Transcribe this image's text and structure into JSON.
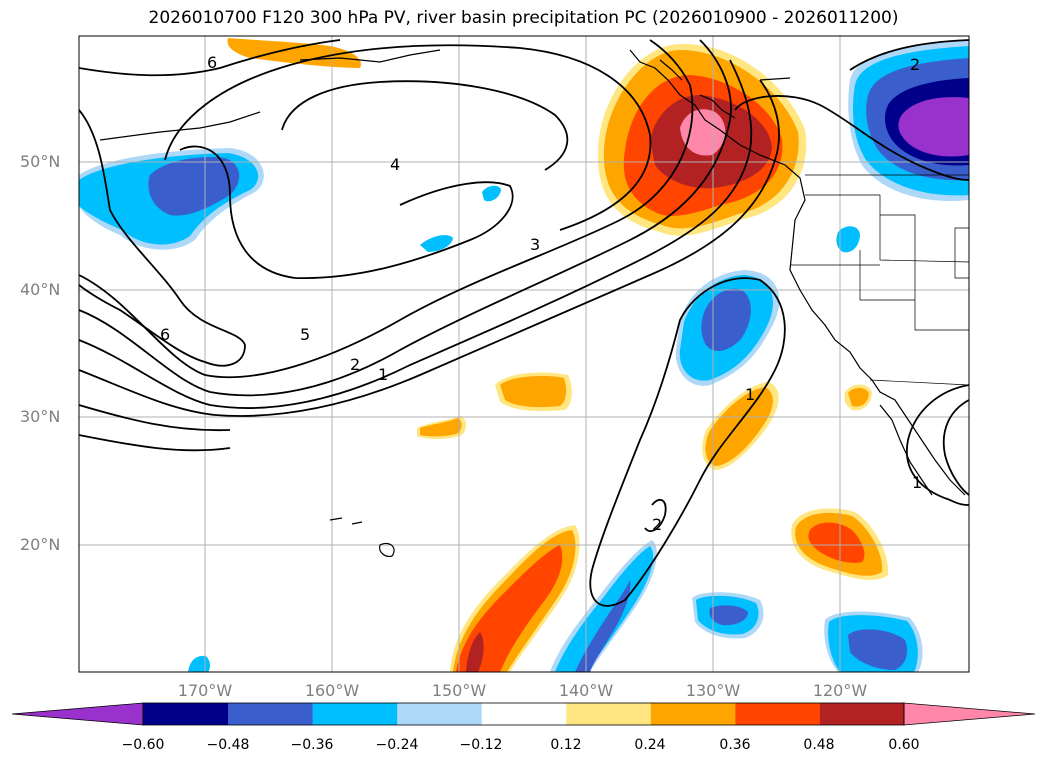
{
  "title": "2026010700 F120 300 hPa PV, river basin precipitation PC (2026010900 - 2026011200)",
  "map": {
    "lat_labels": [
      "50°N",
      "40°N",
      "30°N",
      "20°N"
    ],
    "lon_labels": [
      "170°W",
      "160°W",
      "150°W",
      "140°W",
      "130°W",
      "120°W"
    ],
    "contour_labels": [
      "6",
      "4",
      "3",
      "5",
      "2",
      "1",
      "6",
      "2",
      "1",
      "2",
      "1"
    ]
  },
  "colorbar": {
    "ticks": [
      "−0.60",
      "−0.48",
      "−0.36",
      "−0.24",
      "−0.12",
      "0.12",
      "0.24",
      "0.36",
      "0.48",
      "0.60"
    ],
    "colors": [
      "#9932cc",
      "#00008b",
      "#3a5fcd",
      "#00bfff",
      "#add8f8",
      "#ffffff",
      "#ffe680",
      "#ffa500",
      "#ff4500",
      "#b22222",
      "#ff88aa"
    ]
  }
}
